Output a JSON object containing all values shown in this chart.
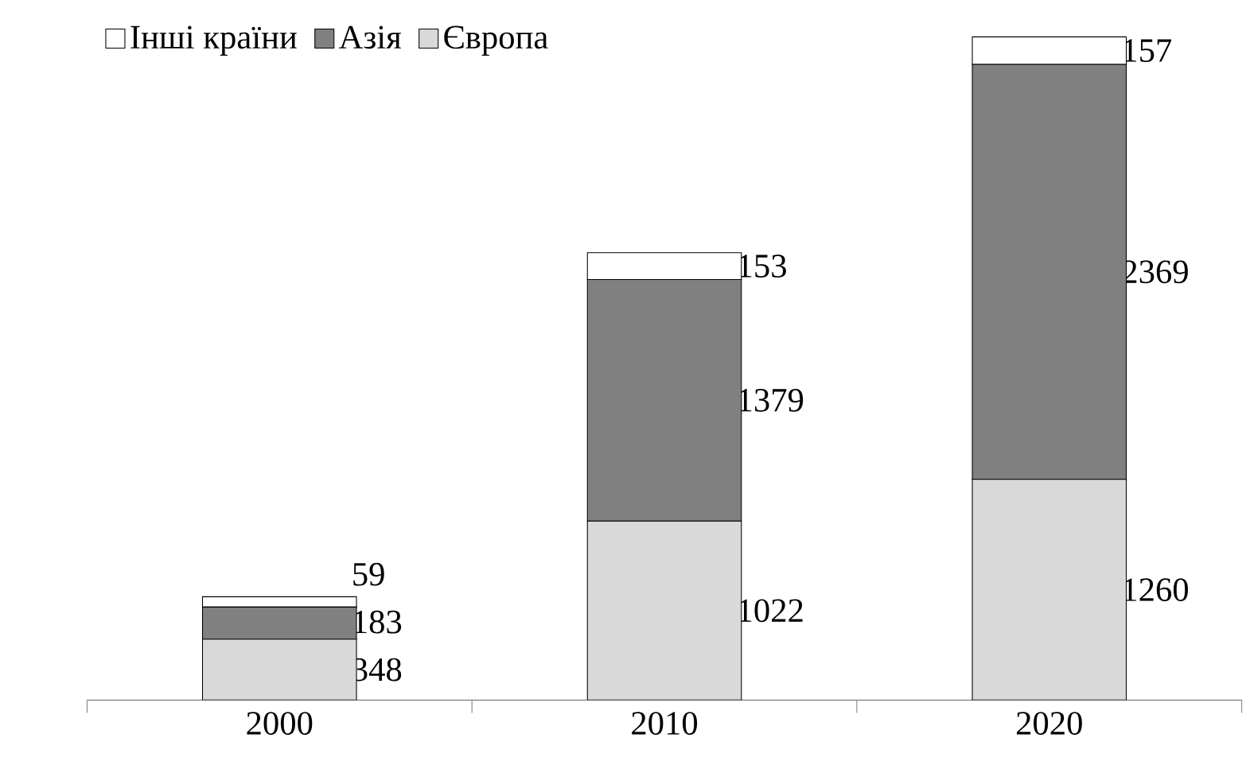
{
  "chart_data": {
    "type": "bar",
    "stacked": true,
    "categories": [
      "2000",
      "2010",
      "2020"
    ],
    "series": [
      {
        "name": "Європа",
        "color": "#d9d9d9",
        "values": [
          348,
          1022,
          1260
        ]
      },
      {
        "name": "Азія",
        "color": "#808080",
        "values": [
          183,
          1379,
          2369
        ]
      },
      {
        "name": "Інші країни",
        "color": "#ffffff",
        "values": [
          59,
          153,
          157
        ]
      }
    ],
    "data_labels": true,
    "legend": "top left"
  }
}
